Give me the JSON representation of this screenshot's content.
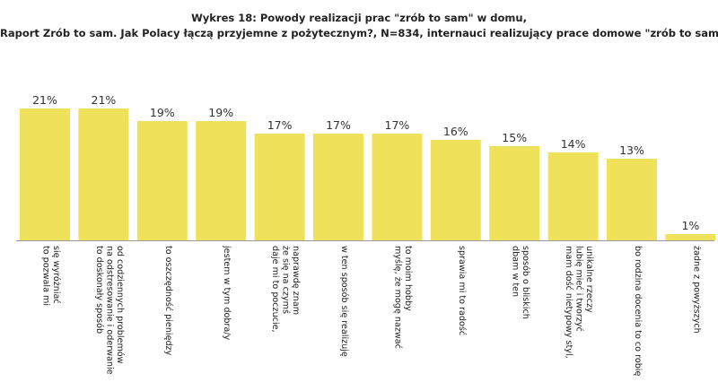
{
  "title_line1": "Wykres 18: Powody realizacji prac \"zrób to sam\" w domu,",
  "title_line2": "Raport Zrób to sam. Jak Polacy łączą przyjemne z pożytecznym?, N=834, internauci realizujący prace domowe \"zrób to sam\"",
  "colors": {
    "bar": "#f0e15a",
    "axis": "#9a9a9a"
  },
  "chart_data": {
    "type": "bar",
    "title": "Wykres 18: Powody realizacji prac \"zrób to sam\" w domu,",
    "subtitle": "Raport Zrób to sam. Jak Polacy łączą przyjemne z pożytecznym?, N=834, internauci realizujący prace domowe \"zrób to sam\"",
    "xlabel": "",
    "ylabel": "",
    "ylim": [
      0,
      22
    ],
    "grid": false,
    "categories": [
      [
        "to pozwala mi",
        "się wyróżniać"
      ],
      [
        "to doskonały sposób",
        "na odstresowanie i oderwanie",
        "od codziennych problemów"
      ],
      [
        "to oszczędność pieniędzy"
      ],
      [
        "jestem w tym dobra/y"
      ],
      [
        "daje mi to poczucie,",
        "że się na czymś",
        "naprawdę znam"
      ],
      [
        "w ten sposób się realizuję"
      ],
      [
        "myślę, że mogę nazwać",
        "to moim hobby"
      ],
      [
        "sprawia mi to radość"
      ],
      [
        "dbam w ten",
        "sposób o bliskich"
      ],
      [
        "mam dość nietypowy styl,",
        "lubię mieć i tworzyć",
        "unikalne rzeczy"
      ],
      [
        "bo rodzina docenia to co robię"
      ],
      [
        "żadne z powyższych"
      ]
    ],
    "values": [
      21,
      21,
      19,
      19,
      17,
      17,
      17,
      16,
      15,
      14,
      13,
      1
    ],
    "data_labels": [
      "21%",
      "21%",
      "19%",
      "19%",
      "17%",
      "17%",
      "17%",
      "16%",
      "15%",
      "14%",
      "13%",
      "1%"
    ]
  }
}
